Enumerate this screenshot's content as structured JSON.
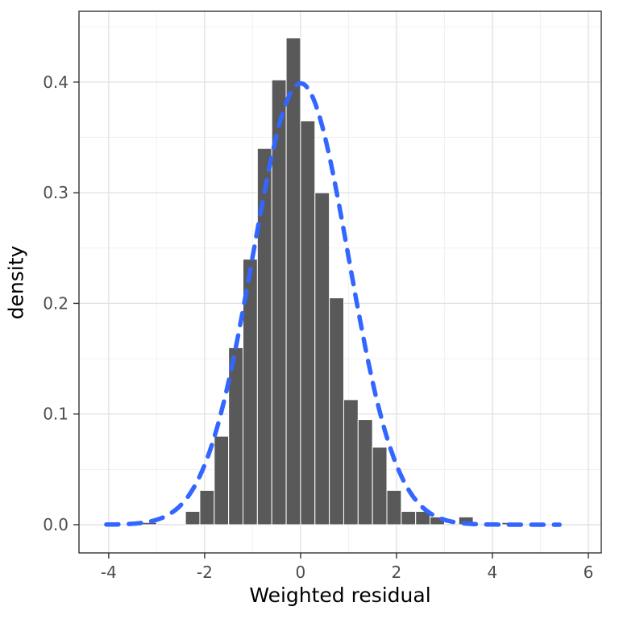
{
  "figure": {
    "background": "#FFFFFF"
  },
  "chart_data": {
    "type": "bar",
    "subtype": "histogram_with_density_overlay",
    "title": "",
    "xlabel": "Weighted residual",
    "ylabel": "density",
    "xlim": [
      -4.62,
      6.27
    ],
    "ylim": [
      -0.0255,
      0.464
    ],
    "x_ticks": [
      -4,
      -2,
      0,
      2,
      4,
      6
    ],
    "x_tick_labels": [
      "-4",
      "-2",
      "0",
      "2",
      "4",
      "6"
    ],
    "x_minor_ticks": [
      -3,
      -1,
      1,
      3,
      5
    ],
    "y_ticks": [
      0.0,
      0.1,
      0.2,
      0.3,
      0.4
    ],
    "y_tick_labels": [
      "0.0",
      "0.1",
      "0.2",
      "0.3",
      "0.4"
    ],
    "y_minor_ticks": [
      0.05,
      0.15,
      0.25,
      0.35,
      0.45
    ],
    "bin_width": 0.3,
    "bars": [
      {
        "center": -3.15,
        "density": 0.002
      },
      {
        "center": -2.25,
        "density": 0.012
      },
      {
        "center": -1.95,
        "density": 0.031
      },
      {
        "center": -1.65,
        "density": 0.08
      },
      {
        "center": -1.35,
        "density": 0.16
      },
      {
        "center": -1.05,
        "density": 0.24
      },
      {
        "center": -0.75,
        "density": 0.34
      },
      {
        "center": -0.45,
        "density": 0.402
      },
      {
        "center": -0.15,
        "density": 0.44
      },
      {
        "center": 0.15,
        "density": 0.365
      },
      {
        "center": 0.45,
        "density": 0.3
      },
      {
        "center": 0.75,
        "density": 0.205
      },
      {
        "center": 1.05,
        "density": 0.113
      },
      {
        "center": 1.35,
        "density": 0.095
      },
      {
        "center": 1.65,
        "density": 0.07
      },
      {
        "center": 1.95,
        "density": 0.031
      },
      {
        "center": 2.25,
        "density": 0.012
      },
      {
        "center": 2.55,
        "density": 0.012
      },
      {
        "center": 2.85,
        "density": 0.007
      },
      {
        "center": 3.45,
        "density": 0.007
      },
      {
        "center": 4.35,
        "density": 0.002
      }
    ],
    "bar_color": "#595959",
    "bar_edge_color": "#FFFFFF",
    "curve": {
      "shape": "normal_density",
      "mean": 0,
      "sd": 1,
      "x_from": -4.05,
      "x_to": 5.4,
      "color": "#3366FF",
      "line_style": "dashed",
      "line_width": 5.5
    },
    "grid": {
      "enabled": true,
      "major_color": "#E2E2E2",
      "minor_color": "#F1F1F1"
    },
    "panel_border_color": "#333333",
    "tick_label_color": "#4D4D4D",
    "legend": "none"
  }
}
